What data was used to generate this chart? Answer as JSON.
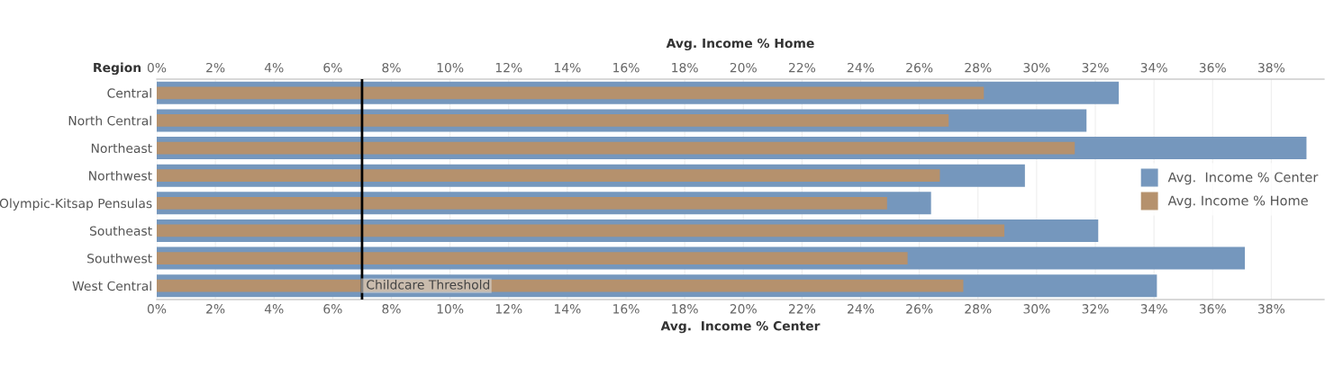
{
  "chart_data": {
    "type": "bar",
    "orientation": "horizontal",
    "xlabel": "Avg.  Income % Center",
    "x2label": "Avg. Income % Home",
    "ylabel": "Region",
    "categories": [
      "Central",
      "North Central",
      "Northeast",
      "Northwest",
      "Olympic-Kitsap Pensulas",
      "Southeast",
      "Southwest",
      "West Central"
    ],
    "series": [
      {
        "name": "Avg.  Income % Center",
        "color": "#7597bd",
        "values": [
          32.8,
          31.7,
          39.2,
          29.6,
          26.4,
          32.1,
          37.1,
          34.1
        ]
      },
      {
        "name": "Avg. Income % Home",
        "color": "#b5916d",
        "axis": "x2",
        "values": [
          28.2,
          27.0,
          31.3,
          26.7,
          24.9,
          28.9,
          25.6,
          27.5
        ]
      }
    ],
    "xlim": [
      0,
      39.8
    ],
    "x2lim": [
      0,
      39.8
    ],
    "xticks": [
      {
        "value": 0,
        "label": "0%"
      },
      {
        "value": 2,
        "label": "2%"
      },
      {
        "value": 4,
        "label": "4%"
      },
      {
        "value": 6,
        "label": "6%"
      },
      {
        "value": 8,
        "label": "8%"
      },
      {
        "value": 10,
        "label": "10%"
      },
      {
        "value": 12,
        "label": "12%"
      },
      {
        "value": 14,
        "label": "14%"
      },
      {
        "value": 16,
        "label": "16%"
      },
      {
        "value": 18,
        "label": "18%"
      },
      {
        "value": 20,
        "label": "20%"
      },
      {
        "value": 22,
        "label": "22%"
      },
      {
        "value": 24,
        "label": "24%"
      },
      {
        "value": 26,
        "label": "26%"
      },
      {
        "value": 28,
        "label": "28%"
      },
      {
        "value": 30,
        "label": "30%"
      },
      {
        "value": 32,
        "label": "32%"
      },
      {
        "value": 34,
        "label": "34%"
      },
      {
        "value": 36,
        "label": "36%"
      },
      {
        "value": 38,
        "label": "38%"
      }
    ],
    "x2ticks": [
      {
        "value": 0,
        "label": "0%"
      },
      {
        "value": 2,
        "label": "2%"
      },
      {
        "value": 4,
        "label": "4%"
      },
      {
        "value": 6,
        "label": "6%"
      },
      {
        "value": 8,
        "label": "8%"
      },
      {
        "value": 10,
        "label": "10%"
      },
      {
        "value": 12,
        "label": "12%"
      },
      {
        "value": 14,
        "label": "14%"
      },
      {
        "value": 16,
        "label": "16%"
      },
      {
        "value": 18,
        "label": "18%"
      },
      {
        "value": 20,
        "label": "20%"
      },
      {
        "value": 22,
        "label": "22%"
      },
      {
        "value": 24,
        "label": "24%"
      },
      {
        "value": 26,
        "label": "26%"
      },
      {
        "value": 28,
        "label": "28%"
      },
      {
        "value": 30,
        "label": "30%"
      },
      {
        "value": 32,
        "label": "32%"
      },
      {
        "value": 34,
        "label": "34%"
      },
      {
        "value": 36,
        "label": "36%"
      },
      {
        "value": 38,
        "label": "38%"
      }
    ],
    "ref_lines": [
      {
        "axis": "x",
        "value": 7,
        "label": "Childcare Threshold",
        "color": "#000000"
      }
    ],
    "grid": "x",
    "legend": "right"
  }
}
